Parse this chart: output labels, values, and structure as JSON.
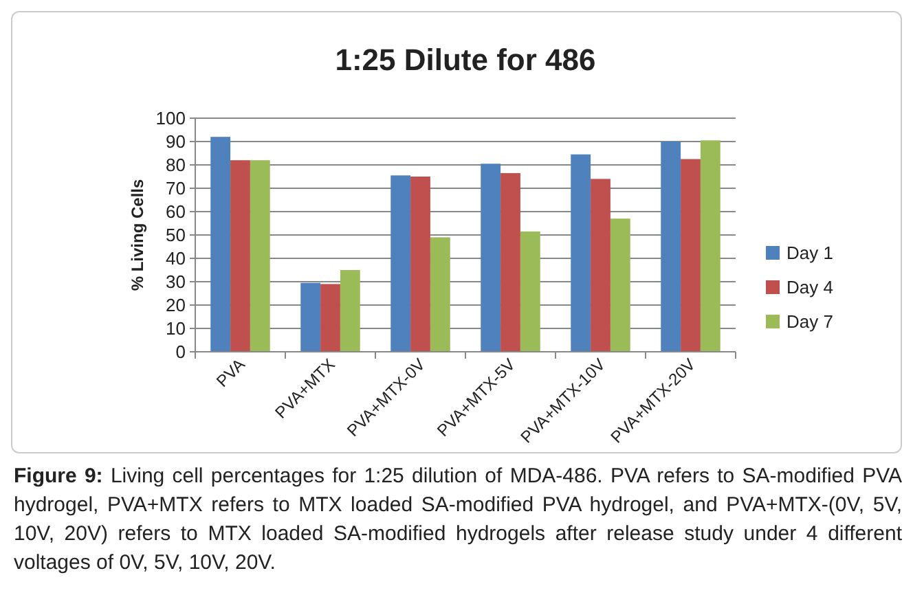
{
  "chart_data": {
    "type": "bar",
    "title": "1:25 Dilute for 486",
    "ylabel": "% Living Cells",
    "categories": [
      "PVA",
      "PVA+MTX",
      "PVA+MTX-0V",
      "PVA+MTX-5V",
      "PVA+MTX-10V",
      "PVA+MTX-20V"
    ],
    "series": [
      {
        "name": "Day 1",
        "color": "#4f81bd",
        "values": [
          92,
          29.5,
          75.5,
          80.5,
          84.5,
          90
        ]
      },
      {
        "name": "Day 4",
        "color": "#c0504d",
        "values": [
          82,
          29,
          75,
          76.5,
          74,
          82.5
        ]
      },
      {
        "name": "Day 7",
        "color": "#9bbb59",
        "values": [
          82,
          35,
          49,
          51.5,
          57,
          90.5
        ]
      }
    ],
    "ylim": [
      0,
      100
    ],
    "yticks": [
      0,
      10,
      20,
      30,
      40,
      50,
      60,
      70,
      80,
      90,
      100
    ],
    "grid": "y",
    "legend": "right",
    "annotations": [
      "Figure 9: Living cell percentages for 1:25 dilution of MDA-486. PVA refers to SA-modified PVA hydrogel, PVA+MTX refers to MTX loaded SA-modified PVA hydrogel, and PVA+MTX-(0V, 5V, 10V, 20V) refers to MTX loaded SA-modified hydrogels after release study under 4 different voltages of 0V, 5V, 10V, 20V."
    ]
  }
}
